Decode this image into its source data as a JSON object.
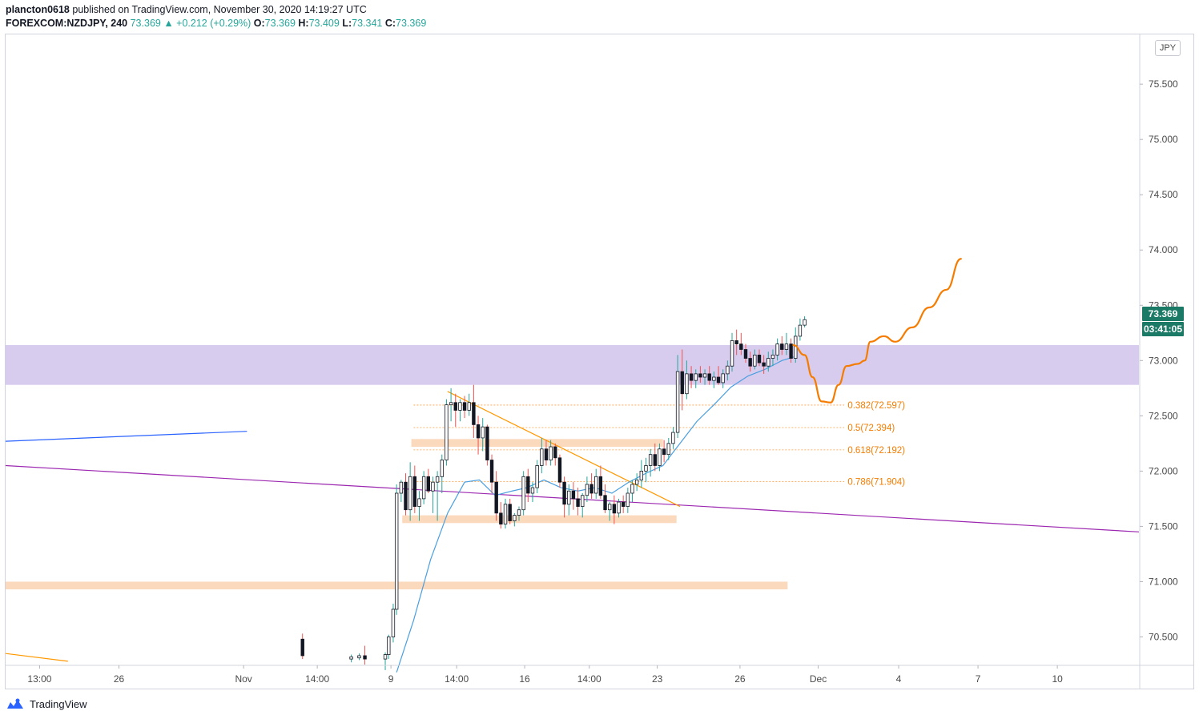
{
  "header": {
    "author": "plancton0618",
    "published_text": "published on TradingView.com, November 30, 2020 14:19:27 UTC",
    "symbol": "FOREXCOM:NZDJPY, 240",
    "last": "73.369",
    "change": "▲ +0.212 (+0.29%)",
    "o_label": "O:",
    "o": "73.369",
    "h_label": "H:",
    "h": "73.409",
    "l_label": "L:",
    "l": "73.341",
    "c_label": "C:",
    "c": "73.369"
  },
  "currency_button": "JPY",
  "current_price_badge": "73.369",
  "countdown_badge": "03:41:05",
  "footer": {
    "brand": "TradingView"
  },
  "colors": {
    "up": "#26a69a",
    "down": "#ef5350",
    "candle": "#131722",
    "zone_purple": "#d8ccee",
    "zone_orange": "#fbd9bd",
    "fib": "#f57c00",
    "ma": "#4a9fe0",
    "trend_purple": "#9c27b0",
    "trend_blue": "#2962ff",
    "trend_orange": "#ff9800"
  },
  "chart_data": {
    "type": "candlestick",
    "symbol": "FOREXCOM:NZDJPY",
    "interval": "240",
    "ylim": [
      70.25,
      75.95
    ],
    "price_ticks": [
      "75.500",
      "75.000",
      "74.500",
      "74.000",
      "73.500",
      "73.000",
      "72.500",
      "72.000",
      "71.500",
      "71.000",
      "70.500"
    ],
    "time_ticks": [
      {
        "label": "13:00",
        "t": 0.03
      },
      {
        "label": "26",
        "t": 0.1
      },
      {
        "label": "Nov",
        "t": 0.21
      },
      {
        "label": "14:00",
        "t": 0.275
      },
      {
        "label": "9",
        "t": 0.34
      },
      {
        "label": "14:00",
        "t": 0.398
      },
      {
        "label": "16",
        "t": 0.458
      },
      {
        "label": "14:00",
        "t": 0.515
      },
      {
        "label": "23",
        "t": 0.575
      },
      {
        "label": "26",
        "t": 0.648
      },
      {
        "label": "Dec",
        "t": 0.717
      },
      {
        "label": "4",
        "t": 0.788
      },
      {
        "label": "7",
        "t": 0.858
      },
      {
        "label": "10",
        "t": 0.928
      }
    ],
    "zones": [
      {
        "name": "resistance-zone",
        "kind": "purple",
        "y_top": 73.14,
        "y_bottom": 72.78,
        "t_start": 0.0,
        "t_end": 1.0
      },
      {
        "name": "orange-zone-1",
        "kind": "orange",
        "y_top": 72.29,
        "y_bottom": 72.22,
        "t_start": 0.358,
        "t_end": 0.58
      },
      {
        "name": "orange-zone-2",
        "kind": "orange",
        "y_top": 71.6,
        "y_bottom": 71.53,
        "t_start": 0.35,
        "t_end": 0.592
      },
      {
        "name": "orange-zone-3",
        "kind": "orange",
        "y_top": 71.0,
        "y_bottom": 70.93,
        "t_start": 0.0,
        "t_end": 0.69
      }
    ],
    "fib_levels": [
      {
        "label": "0.382(72.597)",
        "value": 72.597
      },
      {
        "label": "0.5(72.394)",
        "value": 72.394
      },
      {
        "label": "0.618(72.192)",
        "value": 72.192
      },
      {
        "label": "0.786(71.904)",
        "value": 71.904
      }
    ],
    "trendlines": [
      {
        "name": "blue-trendline",
        "color": "trend_blue",
        "points": [
          [
            0.0,
            72.27
          ],
          [
            0.213,
            72.36
          ]
        ]
      },
      {
        "name": "purple-trendline",
        "color": "trend_purple",
        "points": [
          [
            0.0,
            72.05
          ],
          [
            1.0,
            71.45
          ]
        ]
      },
      {
        "name": "orange-trendline",
        "color": "trend_orange",
        "points": [
          [
            0.39,
            72.72
          ],
          [
            0.595,
            71.68
          ]
        ]
      },
      {
        "name": "orange-trendline-lower",
        "color": "trend_orange",
        "points": [
          [
            0.0,
            70.35
          ],
          [
            0.055,
            70.28
          ]
        ]
      }
    ],
    "projection": [
      [
        0.695,
        73.14
      ],
      [
        0.705,
        73.05
      ],
      [
        0.712,
        72.85
      ],
      [
        0.72,
        72.63
      ],
      [
        0.728,
        72.62
      ],
      [
        0.735,
        72.78
      ],
      [
        0.742,
        72.95
      ],
      [
        0.752,
        72.97
      ],
      [
        0.758,
        73.0
      ],
      [
        0.763,
        73.17
      ],
      [
        0.775,
        73.22
      ],
      [
        0.785,
        73.17
      ],
      [
        0.8,
        73.3
      ],
      [
        0.815,
        73.48
      ],
      [
        0.83,
        73.64
      ],
      [
        0.843,
        73.92
      ]
    ],
    "ma": [
      [
        0.345,
        70.18
      ],
      [
        0.36,
        70.65
      ],
      [
        0.375,
        71.2
      ],
      [
        0.39,
        71.62
      ],
      [
        0.405,
        71.9
      ],
      [
        0.418,
        71.92
      ],
      [
        0.432,
        71.78
      ],
      [
        0.447,
        71.82
      ],
      [
        0.46,
        71.85
      ],
      [
        0.475,
        71.92
      ],
      [
        0.49,
        71.85
      ],
      [
        0.505,
        71.82
      ],
      [
        0.52,
        71.85
      ],
      [
        0.535,
        71.8
      ],
      [
        0.55,
        71.9
      ],
      [
        0.565,
        71.98
      ],
      [
        0.58,
        72.05
      ],
      [
        0.595,
        72.25
      ],
      [
        0.61,
        72.45
      ],
      [
        0.625,
        72.6
      ],
      [
        0.64,
        72.76
      ],
      [
        0.655,
        72.86
      ],
      [
        0.67,
        72.92
      ],
      [
        0.685,
        73.0
      ],
      [
        0.698,
        73.04
      ]
    ],
    "candles": [
      [
        0.262,
        70.48,
        70.53,
        70.3,
        70.33
      ],
      [
        0.305,
        70.3,
        70.34,
        70.27,
        70.32
      ],
      [
        0.312,
        70.31,
        70.35,
        70.29,
        70.33
      ],
      [
        0.317,
        70.33,
        70.42,
        70.25,
        70.3
      ],
      [
        0.335,
        70.3,
        70.36,
        70.2,
        70.34
      ],
      [
        0.338,
        70.34,
        70.52,
        70.3,
        70.5
      ],
      [
        0.342,
        70.5,
        70.8,
        70.45,
        70.75
      ],
      [
        0.345,
        70.75,
        71.88,
        70.7,
        71.8
      ],
      [
        0.349,
        71.8,
        71.92,
        71.72,
        71.9
      ],
      [
        0.353,
        71.9,
        71.98,
        71.6,
        71.65
      ],
      [
        0.357,
        71.65,
        72.08,
        71.55,
        71.95
      ],
      [
        0.361,
        71.95,
        72.05,
        71.62,
        71.68
      ],
      [
        0.365,
        71.68,
        71.82,
        71.55,
        71.75
      ],
      [
        0.369,
        71.75,
        72.0,
        71.7,
        71.95
      ],
      [
        0.373,
        71.95,
        72.02,
        71.8,
        71.82
      ],
      [
        0.377,
        71.82,
        71.95,
        71.62,
        71.9
      ],
      [
        0.381,
        71.9,
        72.0,
        71.55,
        71.95
      ],
      [
        0.385,
        71.95,
        72.15,
        71.8,
        72.1
      ],
      [
        0.389,
        72.1,
        72.65,
        72.05,
        72.6
      ],
      [
        0.393,
        72.6,
        72.75,
        72.45,
        72.62
      ],
      [
        0.397,
        72.62,
        72.7,
        72.4,
        72.55
      ],
      [
        0.401,
        72.55,
        72.65,
        72.45,
        72.62
      ],
      [
        0.405,
        72.62,
        72.68,
        72.48,
        72.55
      ],
      [
        0.409,
        72.55,
        72.7,
        72.5,
        72.62
      ],
      [
        0.413,
        72.62,
        72.78,
        72.3,
        72.42
      ],
      [
        0.417,
        72.42,
        72.5,
        72.15,
        72.3
      ],
      [
        0.421,
        72.3,
        72.48,
        72.18,
        72.4
      ],
      [
        0.425,
        72.4,
        72.42,
        72.05,
        72.1
      ],
      [
        0.429,
        72.1,
        72.15,
        71.8,
        71.9
      ],
      [
        0.433,
        71.9,
        72.0,
        71.55,
        71.62
      ],
      [
        0.437,
        71.62,
        71.72,
        71.48,
        71.52
      ],
      [
        0.441,
        71.52,
        71.75,
        71.48,
        71.7
      ],
      [
        0.445,
        71.7,
        71.75,
        71.52,
        71.55
      ],
      [
        0.449,
        71.55,
        71.62,
        71.5,
        71.6
      ],
      [
        0.453,
        71.6,
        71.68,
        71.55,
        71.65
      ],
      [
        0.457,
        71.65,
        72.0,
        71.6,
        71.95
      ],
      [
        0.461,
        71.95,
        72.02,
        71.72,
        71.8
      ],
      [
        0.465,
        71.8,
        71.9,
        71.72,
        71.85
      ],
      [
        0.469,
        71.85,
        72.1,
        71.8,
        72.05
      ],
      [
        0.473,
        72.05,
        72.3,
        71.98,
        72.2
      ],
      [
        0.477,
        72.2,
        72.28,
        72.05,
        72.1
      ],
      [
        0.481,
        72.1,
        72.28,
        72.05,
        72.22
      ],
      [
        0.485,
        72.22,
        72.25,
        72.05,
        72.12
      ],
      [
        0.489,
        72.12,
        72.15,
        71.85,
        71.9
      ],
      [
        0.493,
        71.9,
        71.95,
        71.58,
        71.7
      ],
      [
        0.497,
        71.7,
        71.88,
        71.6,
        71.82
      ],
      [
        0.501,
        71.82,
        71.9,
        71.65,
        71.75
      ],
      [
        0.505,
        71.75,
        71.85,
        71.6,
        71.68
      ],
      [
        0.509,
        71.68,
        71.8,
        71.58,
        71.78
      ],
      [
        0.513,
        71.78,
        71.95,
        71.72,
        71.88
      ],
      [
        0.517,
        71.88,
        71.98,
        71.75,
        71.8
      ],
      [
        0.521,
        71.8,
        72.02,
        71.75,
        71.95
      ],
      [
        0.525,
        71.95,
        72.05,
        71.75,
        71.78
      ],
      [
        0.529,
        71.78,
        71.88,
        71.62,
        71.65
      ],
      [
        0.533,
        71.65,
        71.72,
        71.55,
        71.7
      ],
      [
        0.537,
        71.7,
        71.78,
        71.52,
        71.62
      ],
      [
        0.541,
        71.62,
        71.75,
        71.58,
        71.72
      ],
      [
        0.545,
        71.72,
        71.78,
        71.62,
        71.68
      ],
      [
        0.549,
        71.68,
        71.85,
        71.62,
        71.8
      ],
      [
        0.553,
        71.8,
        71.92,
        71.72,
        71.88
      ],
      [
        0.557,
        71.88,
        71.98,
        71.82,
        71.92
      ],
      [
        0.561,
        71.92,
        72.1,
        71.85,
        72.0
      ],
      [
        0.565,
        72.0,
        72.12,
        71.9,
        72.05
      ],
      [
        0.569,
        72.05,
        72.2,
        71.95,
        72.15
      ],
      [
        0.573,
        72.15,
        72.25,
        72.0,
        72.05
      ],
      [
        0.577,
        72.05,
        72.25,
        72.0,
        72.2
      ],
      [
        0.581,
        72.2,
        72.28,
        72.08,
        72.15
      ],
      [
        0.585,
        72.15,
        72.3,
        72.1,
        72.25
      ],
      [
        0.589,
        72.25,
        72.4,
        72.2,
        72.35
      ],
      [
        0.593,
        72.35,
        73.05,
        72.3,
        72.9
      ],
      [
        0.597,
        72.9,
        73.1,
        72.55,
        72.7
      ],
      [
        0.601,
        72.7,
        73.0,
        72.65,
        72.88
      ],
      [
        0.605,
        72.88,
        72.95,
        72.75,
        72.82
      ],
      [
        0.609,
        72.82,
        72.92,
        72.75,
        72.88
      ],
      [
        0.613,
        72.88,
        72.95,
        72.8,
        72.85
      ],
      [
        0.617,
        72.85,
        72.92,
        72.78,
        72.88
      ],
      [
        0.621,
        72.88,
        72.95,
        72.78,
        72.82
      ],
      [
        0.625,
        72.82,
        72.9,
        72.75,
        72.85
      ],
      [
        0.629,
        72.85,
        72.95,
        72.78,
        72.8
      ],
      [
        0.633,
        72.8,
        72.92,
        72.75,
        72.88
      ],
      [
        0.637,
        72.88,
        73.0,
        72.82,
        72.95
      ],
      [
        0.641,
        72.95,
        73.25,
        72.9,
        73.18
      ],
      [
        0.645,
        73.18,
        73.28,
        73.05,
        73.15
      ],
      [
        0.649,
        73.15,
        73.25,
        73.05,
        73.1
      ],
      [
        0.653,
        73.1,
        73.15,
        72.98,
        73.02
      ],
      [
        0.657,
        73.02,
        73.08,
        72.9,
        72.95
      ],
      [
        0.661,
        72.95,
        73.1,
        72.92,
        73.05
      ],
      [
        0.665,
        73.05,
        73.1,
        72.95,
        72.98
      ],
      [
        0.669,
        72.98,
        73.05,
        72.88,
        72.95
      ],
      [
        0.673,
        72.95,
        73.08,
        72.9,
        73.02
      ],
      [
        0.677,
        73.02,
        73.1,
        72.95,
        73.05
      ],
      [
        0.681,
        73.05,
        73.2,
        73.0,
        73.15
      ],
      [
        0.685,
        73.15,
        73.22,
        73.05,
        73.1
      ],
      [
        0.689,
        73.1,
        73.25,
        73.05,
        73.15
      ],
      [
        0.693,
        73.15,
        73.2,
        72.98,
        73.02
      ],
      [
        0.697,
        73.02,
        73.3,
        72.98,
        73.22
      ],
      [
        0.701,
        73.22,
        73.38,
        73.18,
        73.32
      ],
      [
        0.705,
        73.32,
        73.4,
        73.3,
        73.37
      ]
    ]
  }
}
